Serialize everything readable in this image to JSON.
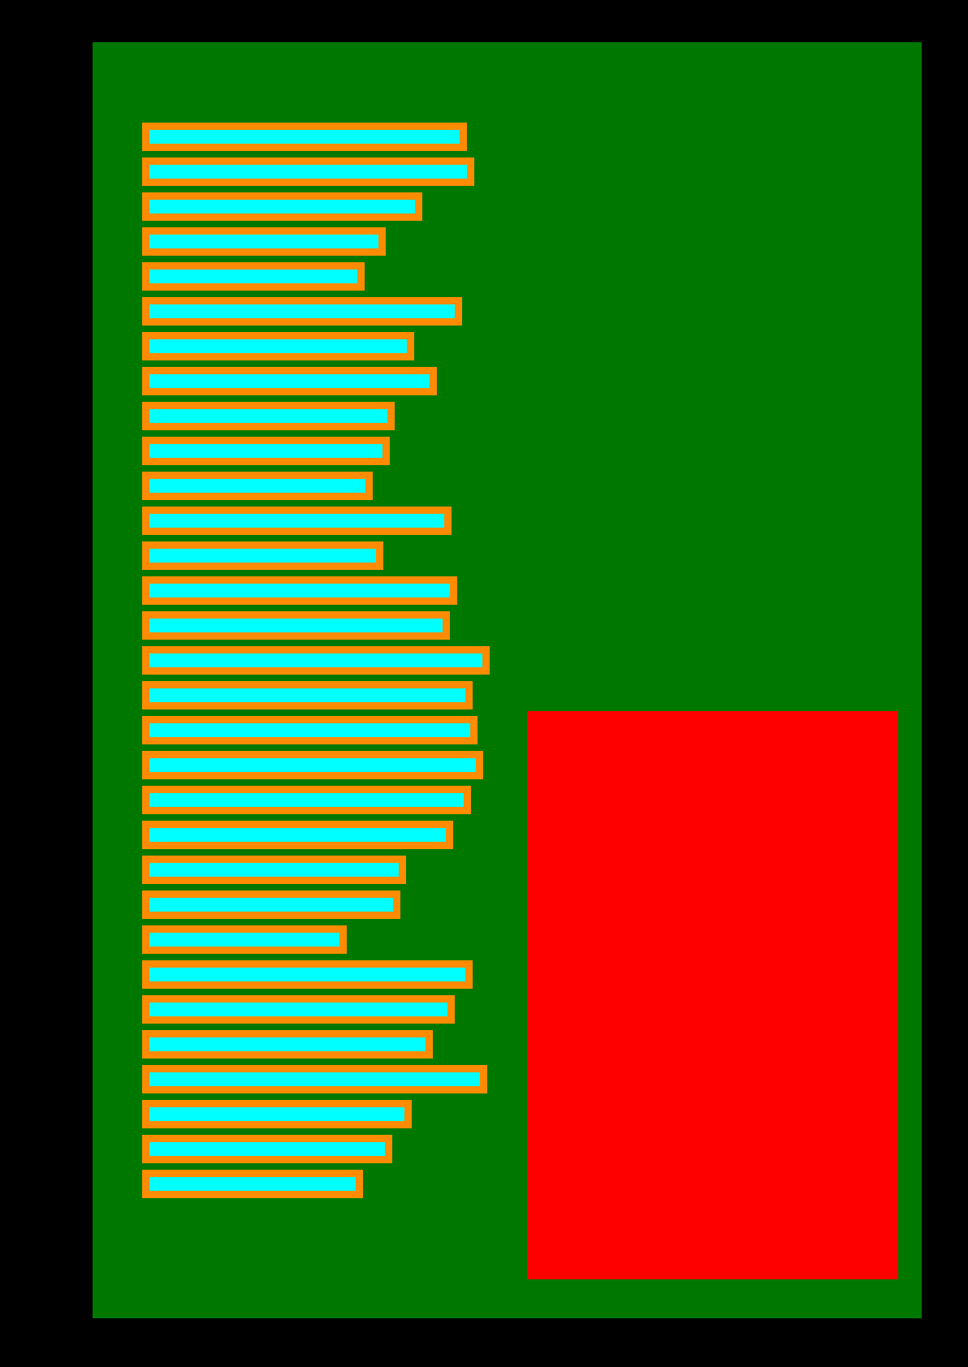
{
  "colors": {
    "background": "#000000",
    "panel": "#007800",
    "bar_fill": "#00ffff",
    "bar_border": "#ff8c00",
    "block": "#ff0000"
  },
  "bars": [
    {
      "level": 0.85
    },
    {
      "level": 0.87
    },
    {
      "level": 0.735
    },
    {
      "level": 0.638
    },
    {
      "level": 0.583
    },
    {
      "level": 0.838
    },
    {
      "level": 0.713
    },
    {
      "level": 0.772
    },
    {
      "level": 0.662
    },
    {
      "level": 0.649
    },
    {
      "level": 0.604
    },
    {
      "level": 0.811
    },
    {
      "level": 0.632
    },
    {
      "level": 0.826
    },
    {
      "level": 0.806
    },
    {
      "level": 0.911
    },
    {
      "level": 0.866
    },
    {
      "level": 0.879
    },
    {
      "level": 0.894
    },
    {
      "level": 0.862
    },
    {
      "level": 0.815
    },
    {
      "level": 0.692
    },
    {
      "level": 0.677
    },
    {
      "level": 0.536
    },
    {
      "level": 0.866
    },
    {
      "level": 0.819
    },
    {
      "level": 0.762
    },
    {
      "level": 0.904
    },
    {
      "level": 0.706
    },
    {
      "level": 0.655
    },
    {
      "level": 0.579
    }
  ]
}
